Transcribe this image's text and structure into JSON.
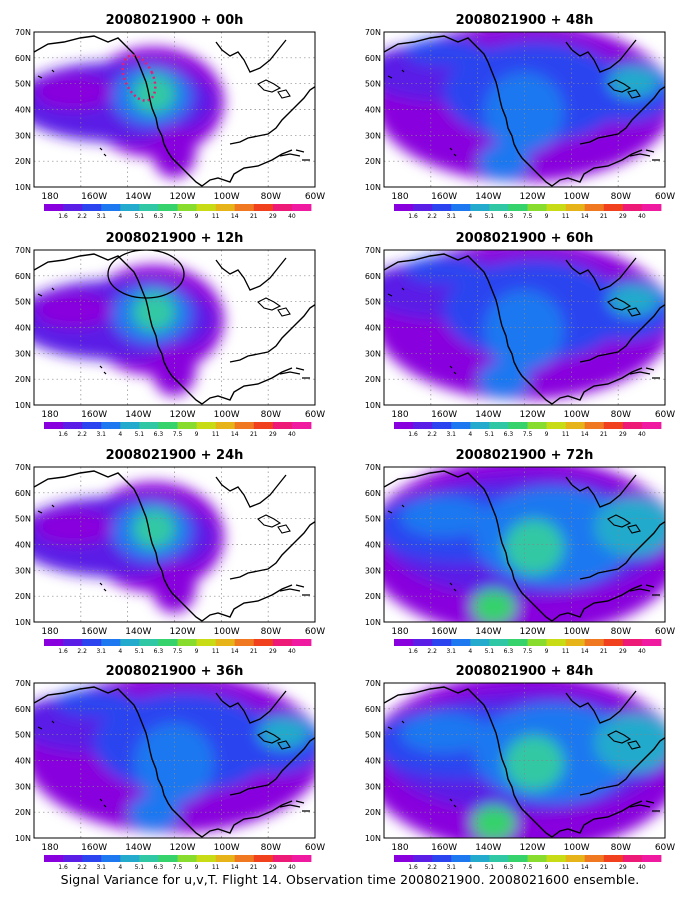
{
  "figure": {
    "caption": "Signal Variance for u,v,T. Flight 14. Observation time 2008021900. 2008021600 ensemble."
  },
  "colorbar": {
    "levels": [
      "1.6",
      "2.2",
      "3.1",
      "4",
      "5.1",
      "6.3",
      "7.5",
      "9",
      "11",
      "14",
      "21",
      "29",
      "40"
    ],
    "colors": [
      "#8800dd",
      "#5a1ee6",
      "#2c44f0",
      "#1e78f0",
      "#24aacc",
      "#30c8a4",
      "#36d26c",
      "#88dc2e",
      "#c8dc16",
      "#e6b418",
      "#f07820",
      "#f0401e",
      "#ee1a78",
      "#f01aa0"
    ]
  },
  "axes": {
    "lon_labels": [
      "180",
      "160W",
      "140W",
      "120W",
      "100W",
      "80W",
      "60W"
    ],
    "lat_labels": [
      "70N",
      "60N",
      "50N",
      "40N",
      "30N",
      "20N",
      "10N"
    ]
  },
  "panels": [
    {
      "title": "2008021900 + 00h",
      "spread": "low",
      "ellipse": "dotted"
    },
    {
      "title": "2008021900 + 48h",
      "spread": "med"
    },
    {
      "title": "2008021900 + 12h",
      "spread": "low",
      "ellipse": "solid"
    },
    {
      "title": "2008021900 + 60h",
      "spread": "med"
    },
    {
      "title": "2008021900 + 24h",
      "spread": "low"
    },
    {
      "title": "2008021900 + 72h",
      "spread": "high"
    },
    {
      "title": "2008021900 + 36h",
      "spread": "med"
    },
    {
      "title": "2008021900 + 84h",
      "spread": "high"
    }
  ]
}
